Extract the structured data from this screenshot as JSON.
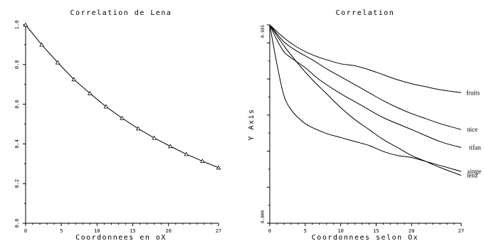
{
  "chart_data": [
    {
      "type": "line",
      "title": "Correlation de Lena",
      "xlabel": "Coordonnees en oX",
      "ylabel": "",
      "xlim": [
        0,
        27
      ],
      "ylim": [
        0,
        1.0
      ],
      "x_ticks": [
        0,
        5,
        10,
        15,
        20,
        27
      ],
      "x_tick_labels": [
        "0",
        "5",
        "10",
        "15",
        "20",
        "27"
      ],
      "y_ticks": [
        0,
        0.2,
        0.4,
        0.6,
        0.8,
        1.0
      ],
      "y_tick_labels": [
        "0.0",
        "0.2",
        "0.4",
        "0.6",
        "0.8",
        "1.0"
      ],
      "grid": false,
      "series": [
        {
          "marker": "triangle",
          "x": [
            0,
            2.25,
            4.5,
            6.75,
            9,
            11.25,
            13.5,
            15.75,
            18,
            20.25,
            22.5,
            24.75,
            27
          ],
          "y": [
            1.0,
            0.9,
            0.81,
            0.725,
            0.655,
            0.588,
            0.53,
            0.477,
            0.43,
            0.388,
            0.348,
            0.313,
            0.28
          ]
        }
      ]
    },
    {
      "type": "line",
      "title": "Correlation",
      "xlabel": "Coordonnees selon Ox",
      "ylabel": "Y Axis",
      "xlim": [
        0,
        27
      ],
      "ylim": [
        0,
        0.995
      ],
      "x_ticks": [
        0,
        5,
        10,
        15,
        20,
        27
      ],
      "x_tick_labels": [
        "0",
        "5",
        "10",
        "15",
        "20",
        "27"
      ],
      "y_tick_labels": [
        "0.000",
        "0.995"
      ],
      "grid": false,
      "series": [
        {
          "name": "fruits",
          "x": [
            0,
            2,
            4,
            6,
            8,
            10,
            12,
            14,
            16,
            18,
            20,
            22,
            24,
            27
          ],
          "y": [
            0.995,
            0.93,
            0.88,
            0.845,
            0.82,
            0.8,
            0.79,
            0.77,
            0.745,
            0.72,
            0.7,
            0.685,
            0.67,
            0.655
          ]
        },
        {
          "name": "nice",
          "x": [
            0,
            2,
            4,
            6,
            8,
            10,
            12,
            14,
            16,
            18,
            20,
            22,
            24,
            27
          ],
          "y": [
            0.995,
            0.91,
            0.86,
            0.82,
            0.775,
            0.735,
            0.695,
            0.655,
            0.615,
            0.58,
            0.55,
            0.525,
            0.5,
            0.47
          ]
        },
        {
          "name": "tifan",
          "x": [
            0,
            1,
            2,
            3,
            5,
            7,
            10,
            13,
            16,
            20,
            24,
            27
          ],
          "y": [
            0.995,
            0.92,
            0.86,
            0.83,
            0.78,
            0.72,
            0.65,
            0.59,
            0.53,
            0.47,
            0.41,
            0.38
          ]
        },
        {
          "name": "singe",
          "x": [
            0,
            1,
            2,
            3,
            4,
            5,
            6,
            8,
            10,
            12,
            14,
            16,
            18,
            20,
            22,
            24,
            27
          ],
          "y": [
            0.995,
            0.8,
            0.64,
            0.57,
            0.53,
            0.5,
            0.48,
            0.45,
            0.43,
            0.41,
            0.39,
            0.36,
            0.34,
            0.33,
            0.31,
            0.29,
            0.26
          ]
        },
        {
          "name": "lena",
          "x": [
            0,
            2,
            4,
            6,
            8,
            10,
            12,
            14,
            16,
            18,
            20,
            22,
            24,
            27
          ],
          "y": [
            0.995,
            0.89,
            0.8,
            0.72,
            0.65,
            0.58,
            0.52,
            0.47,
            0.42,
            0.38,
            0.34,
            0.31,
            0.28,
            0.24
          ]
        }
      ]
    }
  ]
}
